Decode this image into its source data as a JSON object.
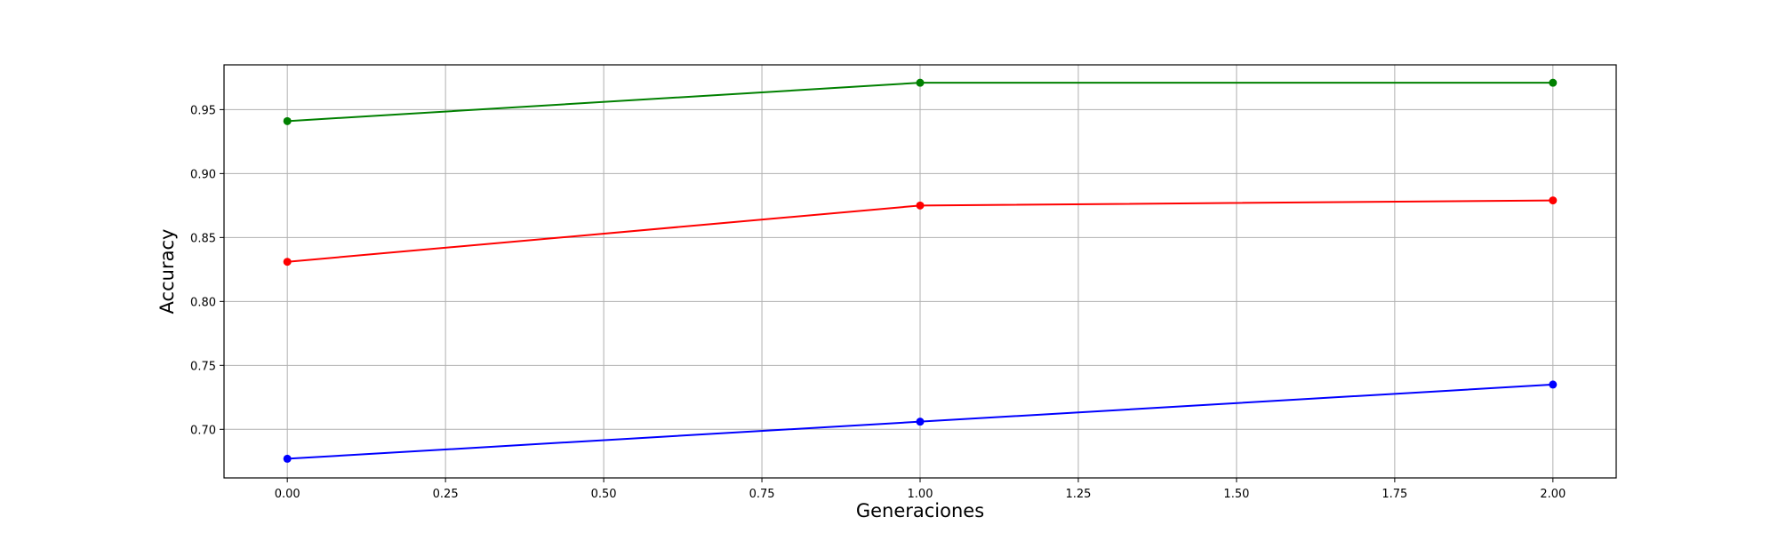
{
  "chart_data": {
    "type": "line",
    "title": "",
    "xlabel": "Generaciones",
    "ylabel": "Accuracy",
    "xlim": [
      -0.1,
      2.1
    ],
    "ylim": [
      0.662,
      0.985
    ],
    "x": [
      0.0,
      1.0,
      2.0
    ],
    "xticks": [
      0.0,
      0.25,
      0.5,
      0.75,
      1.0,
      1.25,
      1.5,
      1.75,
      2.0
    ],
    "xtick_labels": [
      "0.00",
      "0.25",
      "0.50",
      "0.75",
      "1.00",
      "1.25",
      "1.50",
      "1.75",
      "2.00"
    ],
    "yticks": [
      0.7,
      0.75,
      0.8,
      0.85,
      0.9,
      0.95
    ],
    "ytick_labels": [
      "0.70",
      "0.75",
      "0.80",
      "0.85",
      "0.90",
      "0.95"
    ],
    "grid": true,
    "series": [
      {
        "name": "green",
        "color": "#008000",
        "values": [
          0.941,
          0.971,
          0.971
        ]
      },
      {
        "name": "red",
        "color": "#ff0000",
        "values": [
          0.831,
          0.875,
          0.879
        ]
      },
      {
        "name": "blue",
        "color": "#0000ff",
        "values": [
          0.677,
          0.706,
          0.735
        ]
      }
    ]
  }
}
